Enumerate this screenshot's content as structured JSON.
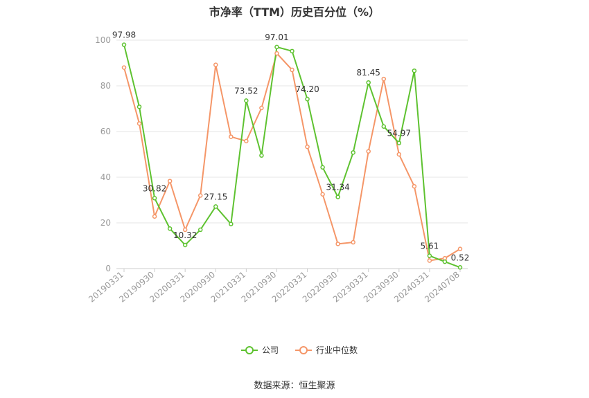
{
  "title": "市净率（TTM）历史百分位（%）",
  "source": "数据来源：恒生聚源",
  "chart_data": {
    "type": "line",
    "x": [
      "20190331",
      "20190630",
      "20190930",
      "20191231",
      "20200331",
      "20200630",
      "20200930",
      "20201231",
      "20210331",
      "20210630",
      "20210930",
      "20211231",
      "20220331",
      "20220630",
      "20220930",
      "20221231",
      "20230331",
      "20230630",
      "20230930",
      "20231231",
      "20240331",
      "20240630",
      "20240708"
    ],
    "x_tick_labels": [
      "20190331",
      "20190930",
      "20200331",
      "20200930",
      "20210331",
      "20210930",
      "20220331",
      "20220930",
      "20230331",
      "20230930",
      "20240331",
      "20240708"
    ],
    "ylim": [
      0,
      100
    ],
    "y_ticks": [
      0,
      20,
      40,
      60,
      80,
      100
    ],
    "grid": true,
    "legend_position": "bottom-center",
    "series": [
      {
        "name": "公司",
        "color": "#5ec230",
        "values": [
          97.98,
          70.8,
          30.82,
          17.5,
          10.32,
          17.0,
          27.15,
          19.5,
          73.52,
          49.5,
          97.01,
          95.2,
          74.2,
          44.3,
          31.34,
          50.8,
          81.45,
          62.2,
          54.97,
          86.6,
          5.61,
          3.0,
          0.52
        ]
      },
      {
        "name": "行业中位数",
        "color": "#f59668",
        "values": [
          88.0,
          63.5,
          22.8,
          38.3,
          17.0,
          32.0,
          89.2,
          57.7,
          55.8,
          70.3,
          94.2,
          87.0,
          53.3,
          32.5,
          10.8,
          11.5,
          51.3,
          83.0,
          50.0,
          36.0,
          3.5,
          4.5,
          8.6
        ]
      }
    ],
    "data_labels": [
      {
        "index": 0,
        "text": "97.98"
      },
      {
        "index": 2,
        "text": "30.82"
      },
      {
        "index": 4,
        "text": "10.32"
      },
      {
        "index": 6,
        "text": "27.15"
      },
      {
        "index": 8,
        "text": "73.52"
      },
      {
        "index": 10,
        "text": "97.01"
      },
      {
        "index": 12,
        "text": "74.20"
      },
      {
        "index": 14,
        "text": "31.34"
      },
      {
        "index": 16,
        "text": "81.45"
      },
      {
        "index": 18,
        "text": "54.97"
      },
      {
        "index": 20,
        "text": "5.61"
      },
      {
        "index": 22,
        "text": "0.52"
      }
    ]
  }
}
